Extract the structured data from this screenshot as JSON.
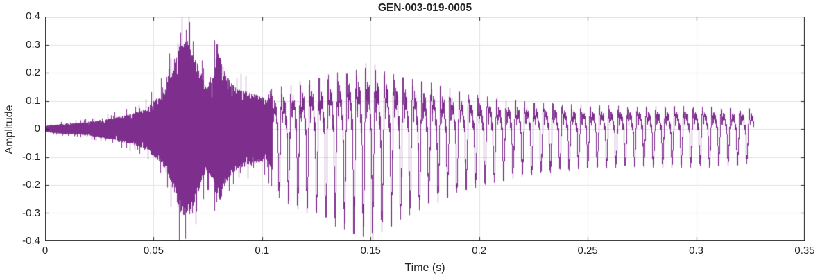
{
  "chart_data": {
    "type": "line",
    "title": "GEN-003-019-0005",
    "xlabel": "Time (s)",
    "ylabel": "Amplitude",
    "xlim": [
      0,
      0.35
    ],
    "ylim": [
      -0.4,
      0.4
    ],
    "x_ticks": [
      0,
      0.05,
      0.1,
      0.15,
      0.2,
      0.25,
      0.3,
      0.35
    ],
    "x_tick_labels": [
      "0",
      "0.05",
      "0.1",
      "0.15",
      "0.2",
      "0.25",
      "0.3",
      "0.35"
    ],
    "y_ticks": [
      -0.4,
      -0.3,
      -0.2,
      -0.1,
      0,
      0.1,
      0.2,
      0.3,
      0.4
    ],
    "y_tick_labels": [
      "-0.4",
      "-0.3",
      "-0.2",
      "-0.1",
      "0",
      "0.1",
      "0.2",
      "0.3",
      "0.4"
    ],
    "grid": true,
    "legend": "none",
    "line_color": "#7E2F8E",
    "grid_color": "#E2E2E2",
    "axis_color": "#262626",
    "waveform": {
      "duration": 0.3265,
      "peak_amplitude": 0.33,
      "min_amplitude": -0.32,
      "segments": [
        {
          "t_start": 0.0,
          "t_end": 0.048,
          "kind": "noise",
          "label": "low-level onset"
        },
        {
          "t_start": 0.048,
          "t_end": 0.1045,
          "kind": "noise",
          "label": "broadband burst"
        },
        {
          "t_start": 0.1045,
          "t_end": 0.3265,
          "kind": "periodic",
          "label": "voiced quasi-periodic tail",
          "frequency_hz": 232,
          "noise_mix": 0.12
        }
      ],
      "envelope": [
        [
          0.0,
          0.012
        ],
        [
          0.008,
          0.018
        ],
        [
          0.016,
          0.022
        ],
        [
          0.024,
          0.03
        ],
        [
          0.032,
          0.04
        ],
        [
          0.04,
          0.055
        ],
        [
          0.046,
          0.07
        ],
        [
          0.05,
          0.1
        ],
        [
          0.054,
          0.13
        ],
        [
          0.058,
          0.19
        ],
        [
          0.062,
          0.3
        ],
        [
          0.065,
          0.33
        ],
        [
          0.068,
          0.28
        ],
        [
          0.071,
          0.22
        ],
        [
          0.074,
          0.15
        ],
        [
          0.077,
          0.18
        ],
        [
          0.08,
          0.28
        ],
        [
          0.083,
          0.2
        ],
        [
          0.086,
          0.16
        ],
        [
          0.09,
          0.14
        ],
        [
          0.094,
          0.13
        ],
        [
          0.098,
          0.12
        ],
        [
          0.102,
          0.11
        ],
        [
          0.105,
          0.16
        ],
        [
          0.11,
          0.19
        ],
        [
          0.118,
          0.21
        ],
        [
          0.126,
          0.23
        ],
        [
          0.134,
          0.25
        ],
        [
          0.142,
          0.27
        ],
        [
          0.15,
          0.29
        ],
        [
          0.156,
          0.27
        ],
        [
          0.162,
          0.24
        ],
        [
          0.17,
          0.22
        ],
        [
          0.178,
          0.2
        ],
        [
          0.186,
          0.18
        ],
        [
          0.194,
          0.16
        ],
        [
          0.202,
          0.145
        ],
        [
          0.21,
          0.135
        ],
        [
          0.22,
          0.125
        ],
        [
          0.23,
          0.115
        ],
        [
          0.24,
          0.11
        ],
        [
          0.252,
          0.105
        ],
        [
          0.264,
          0.1
        ],
        [
          0.278,
          0.1
        ],
        [
          0.292,
          0.1
        ],
        [
          0.306,
          0.1
        ],
        [
          0.316,
          0.095
        ],
        [
          0.3265,
          0.09
        ]
      ]
    }
  }
}
